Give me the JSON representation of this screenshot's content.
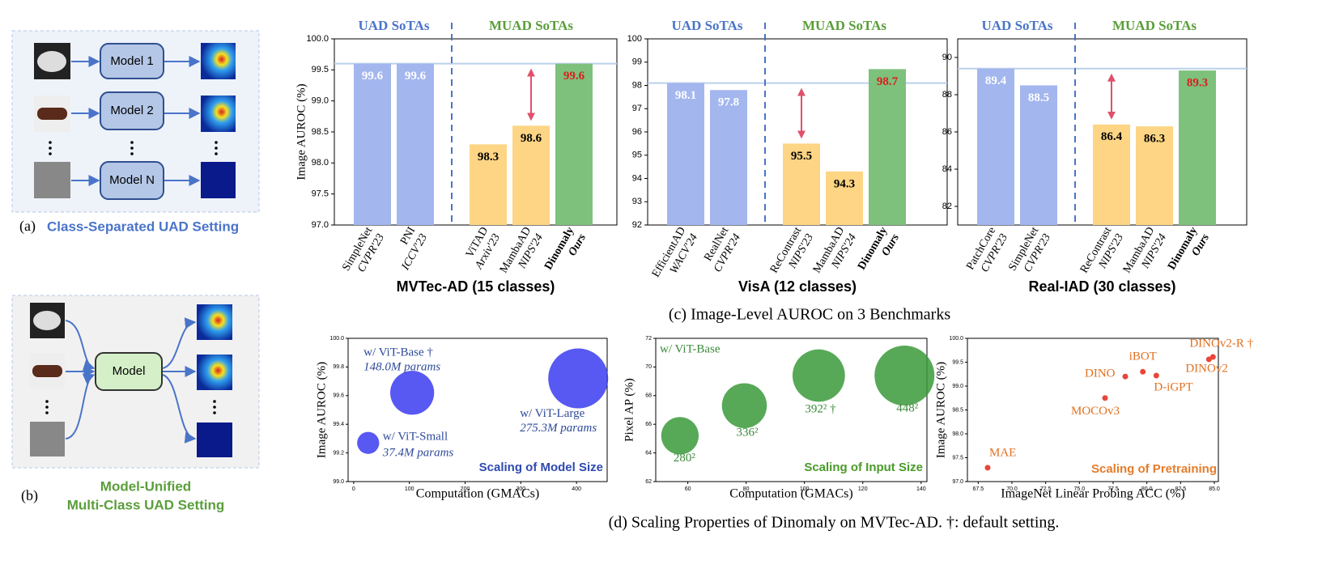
{
  "panel_a": {
    "label": "(a)",
    "models": [
      "Model 1",
      "Model 2",
      "Model N"
    ],
    "caption": "Class-Separated UAD Setting"
  },
  "panel_b": {
    "label": "(b)",
    "model": "Model",
    "caption": [
      "Model-Unified",
      "Multi-Class UAD Setting"
    ]
  },
  "caption_c": "(c) Image-Level AUROC on 3 Benchmarks",
  "caption_d": "(d) Scaling Properties of Dinomaly on MVTec-AD. †: default setting.",
  "chart_data": [
    {
      "type": "bar",
      "title": "MVTec-AD (15 classes)",
      "ylabel": "Image AUROC (%)",
      "ylim": [
        97,
        100
      ],
      "yticks": [
        {
          "value": 97,
          "label": "97.0"
        },
        97.5,
        {
          "value": 98,
          "label": "98.0"
        },
        98.5,
        {
          "value": 99,
          "label": "99.0"
        },
        99.5,
        {
          "value": 100,
          "label": "100.0"
        }
      ],
      "reference": 99.6,
      "groups": [
        {
          "name": "UAD SoTAs",
          "color": "#4a74c9",
          "bars": [
            {
              "name": "SimpleNet",
              "venue": "CVPR'23",
              "value": 99.6,
              "color": "#a3b6ee",
              "label_color": "#ffffff"
            },
            {
              "name": "PNI",
              "venue": "ICCV'23",
              "value": 99.6,
              "color": "#a3b6ee",
              "label_color": "#ffffff"
            }
          ]
        },
        {
          "name": "MUAD SoTAs",
          "color": "#5a9e3a",
          "bars": [
            {
              "name": "ViTAD",
              "venue": "Arxiv'23",
              "value": 98.3,
              "color": "#fdd584",
              "label_color": "#000000"
            },
            {
              "name": "MambaAD",
              "venue": "NIPS'24",
              "value": 98.6,
              "color": "#fdd584",
              "label_color": "#000000"
            },
            {
              "name": "Dinomaly",
              "venue": "Ours",
              "value": 99.6,
              "color": "#7dc17c",
              "label_color": "#d81e1e"
            }
          ]
        }
      ]
    },
    {
      "type": "bar",
      "title": "VisA (12 classes)",
      "ylabel": "",
      "ylim": [
        92,
        100
      ],
      "yticks": [
        92,
        93,
        94,
        95,
        96,
        97,
        98,
        99,
        100
      ],
      "reference": 98.1,
      "groups": [
        {
          "name": "UAD SoTAs",
          "color": "#4a74c9",
          "bars": [
            {
              "name": "EfficientAD",
              "venue": "WACV'24",
              "value": 98.1,
              "color": "#a3b6ee",
              "label_color": "#ffffff"
            },
            {
              "name": "RealNet",
              "venue": "CVPR'24",
              "value": 97.8,
              "color": "#a3b6ee",
              "label_color": "#ffffff"
            }
          ]
        },
        {
          "name": "MUAD SoTAs",
          "color": "#5a9e3a",
          "bars": [
            {
              "name": "ReContrast",
              "venue": "NIPS'23",
              "value": 95.5,
              "color": "#fdd584",
              "label_color": "#000000"
            },
            {
              "name": "MambaAD",
              "venue": "NIPS'24",
              "value": 94.3,
              "color": "#fdd584",
              "label_color": "#000000"
            },
            {
              "name": "Dinomaly",
              "venue": "Ours",
              "value": 98.7,
              "color": "#7dc17c",
              "label_color": "#d81e1e"
            }
          ]
        }
      ]
    },
    {
      "type": "bar",
      "title": "Real-IAD (30 classes)",
      "ylabel": "",
      "ylim": [
        81,
        91
      ],
      "yticks": [
        82,
        84,
        86,
        88,
        90
      ],
      "reference": 89.4,
      "groups": [
        {
          "name": "UAD SoTAs",
          "color": "#4a74c9",
          "bars": [
            {
              "name": "PatchCore",
              "venue": "CVPR'23",
              "value": 89.4,
              "color": "#a3b6ee",
              "label_color": "#ffffff"
            },
            {
              "name": "SimpleNet",
              "venue": "CVPR'23",
              "value": 88.5,
              "color": "#a3b6ee",
              "label_color": "#ffffff"
            }
          ]
        },
        {
          "name": "MUAD SoTAs",
          "color": "#5a9e3a",
          "bars": [
            {
              "name": "ReContrast",
              "venue": "NIPS'23",
              "value": 86.4,
              "color": "#fdd584",
              "label_color": "#000000"
            },
            {
              "name": "MambaAD",
              "venue": "NIPS'24",
              "value": 86.3,
              "color": "#fdd584",
              "label_color": "#000000"
            },
            {
              "name": "Dinomaly",
              "venue": "Ours",
              "value": 89.3,
              "color": "#7dc17c",
              "label_color": "#d81e1e"
            }
          ]
        }
      ]
    },
    {
      "type": "scatter",
      "xlabel": "Computation (GMACs)",
      "ylabel": "Image AUROC (%)",
      "color": "#3b3bf0",
      "label_color": "#2e4a9a",
      "annotation": "Scaling of Model Size",
      "annotation_color": "#2e4ab0",
      "xlim": [
        -10,
        455
      ],
      "xticks": [
        0,
        100,
        200,
        300,
        400
      ],
      "ylim": [
        99,
        100
      ],
      "yticks": [
        {
          "value": 99,
          "label": "99.0"
        },
        99.2,
        99.4,
        99.6,
        99.8,
        {
          "value": 100,
          "label": "100.0"
        }
      ],
      "names": [
        "w/ ViT-Small",
        "w/ ViT-Base †",
        "w/ ViT-Large"
      ],
      "x": [
        26,
        105,
        403
      ],
      "y": [
        99.27,
        99.62,
        99.72
      ],
      "sizes": [
        37.4,
        148.0,
        275.3
      ],
      "size_labels": [
        "37.4M params",
        "148.0M params",
        "275.3M params"
      ]
    },
    {
      "type": "scatter",
      "xlabel": "Computation (GMACs)",
      "ylabel": "Pixel AP (%)",
      "color": "#3a9a3a",
      "label_color": "#3a8a3a",
      "note": "w/ ViT-Base",
      "annotation": "Scaling of Input Size",
      "annotation_color": "#4a9a2a",
      "xlim": [
        49,
        142
      ],
      "xticks": [
        60,
        80,
        100,
        120,
        140
      ],
      "ylim": [
        62,
        72
      ],
      "yticks": [
        62,
        64,
        66,
        68,
        70,
        72
      ],
      "x": [
        57.3,
        79.4,
        104.9,
        134.3
      ],
      "y": [
        65.2,
        67.3,
        69.4,
        69.4
      ],
      "sizes": [
        78400,
        112896,
        153664,
        200704
      ],
      "size_labels": [
        "280²",
        "336²",
        "392² †",
        "448²"
      ]
    },
    {
      "type": "scatter",
      "xlabel": "ImageNet Linear Probing ACC (%)",
      "ylabel": "Image AUROC (%)",
      "color": "#e8463a",
      "label_color": "#e07020",
      "annotation": "Scaling of Pretraining",
      "annotation_color": "#e57c2a",
      "xlim": [
        66.7,
        85.3
      ],
      "xticks": [
        67.5,
        {
          "value": 70,
          "label": "70.0"
        },
        72.5,
        {
          "value": 75,
          "label": "75.0"
        },
        77.5,
        {
          "value": 80,
          "label": "80.0"
        },
        82.5,
        {
          "value": 85,
          "label": "85.0"
        }
      ],
      "ylim": [
        97,
        100
      ],
      "yticks": [
        {
          "value": 97,
          "label": "97.0"
        },
        97.5,
        {
          "value": 98,
          "label": "98.0"
        },
        98.5,
        {
          "value": 99,
          "label": "99.0"
        },
        99.5,
        {
          "value": 100,
          "label": "100.0"
        }
      ],
      "names": [
        "MAE",
        "MOCOv3",
        "DINO",
        "iBOT",
        "D-iGPT",
        "DINOv2",
        "DINOv2-R †"
      ],
      "x": [
        68.2,
        76.9,
        78.4,
        79.7,
        80.7,
        84.6,
        84.9
      ],
      "y": [
        97.29,
        98.75,
        99.2,
        99.3,
        99.22,
        99.56,
        99.61
      ]
    }
  ]
}
